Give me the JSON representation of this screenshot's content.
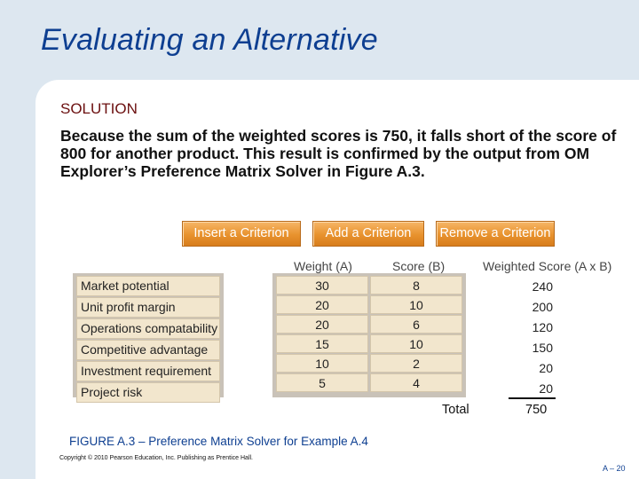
{
  "title": "Evaluating an Alternative",
  "solution_label": "SOLUTION",
  "body_text": "Because the sum of the weighted scores is 750, it falls short of the score of 800 for another product. This result is confirmed by the output from OM Explorer’s Preference Matrix Solver in Figure A.3.",
  "buttons": [
    "Insert a Criterion",
    "Add a Criterion",
    "Remove a Criterion"
  ],
  "columns": {
    "weight": "Weight (A)",
    "score": "Score (B)",
    "weighted": "Weighted Score (A x B)"
  },
  "rows": [
    {
      "criterion": "Market potential",
      "weight": "30",
      "score": "8",
      "weighted": "240"
    },
    {
      "criterion": "Unit profit margin",
      "weight": "20",
      "score": "10",
      "weighted": "200"
    },
    {
      "criterion": "Operations compatability",
      "weight": "20",
      "score": "6",
      "weighted": "120"
    },
    {
      "criterion": "Competitive advantage",
      "weight": "15",
      "score": "10",
      "weighted": "150"
    },
    {
      "criterion": "Investment requirement",
      "weight": "10",
      "score": "2",
      "weighted": "20"
    },
    {
      "criterion": "Project risk",
      "weight": "5",
      "score": "4",
      "weighted": "20"
    }
  ],
  "total_label": "Total",
  "total_value": "750",
  "caption": "FIGURE A.3 – Preference Matrix Solver for Example A.4",
  "copyright": "Copyright © 2010 Pearson Education, Inc. Publishing as Prentice Hall.",
  "page_number": "A – 20"
}
